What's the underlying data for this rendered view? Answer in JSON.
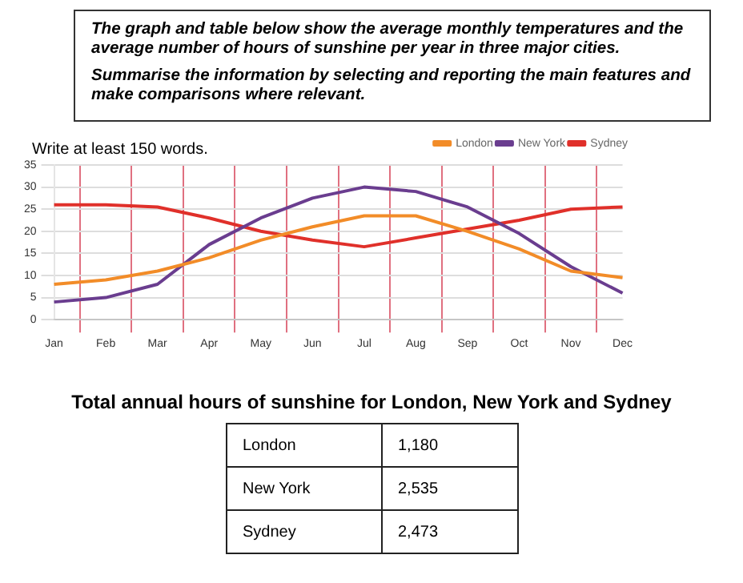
{
  "chart_data": [
    {
      "type": "line",
      "annotations": [
        "The graph and table below show the average monthly temperatures and the average number of hours of sunshine per year in three major cities.",
        "Summarise the information by selecting and reporting the main features and make comparisons where relevant.",
        "Write at least 150 words."
      ],
      "categories": [
        "Jan",
        "Feb",
        "Mar",
        "Apr",
        "May",
        "Jun",
        "Jul",
        "Aug",
        "Sep",
        "Oct",
        "Nov",
        "Dec"
      ],
      "series": [
        {
          "name": "London",
          "color": "#f28c28",
          "values": [
            8,
            9,
            11,
            14,
            18,
            21,
            23.5,
            23.5,
            20,
            16,
            11,
            9.5
          ]
        },
        {
          "name": "New York",
          "color": "#6a3d8f",
          "values": [
            4,
            5,
            8,
            17,
            23,
            27.5,
            30,
            29,
            25.5,
            19.5,
            12,
            6
          ]
        },
        {
          "name": "Sydney",
          "color": "#e0302a",
          "values": [
            26,
            26,
            25.5,
            23,
            20,
            18,
            16.5,
            18.5,
            20.5,
            22.5,
            25,
            25.5
          ]
        }
      ],
      "ylim": [
        0,
        35
      ],
      "yticks": [
        0,
        5,
        10,
        15,
        20,
        25,
        30,
        35
      ],
      "grid": true,
      "legend": "top right",
      "marker": "none",
      "line_style": "solid"
    },
    {
      "type": "other",
      "title": "Total annual hours of sunshine for London, New York and Sydney",
      "categories": [
        "London",
        "New York",
        "Sydney"
      ],
      "value_labels": [
        "1,180",
        "2,535",
        "2,473"
      ]
    }
  ]
}
